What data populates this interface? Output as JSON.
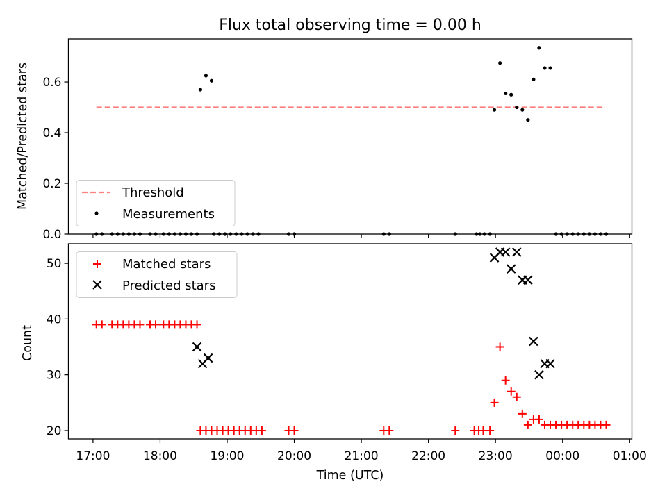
{
  "chart_data": [
    {
      "type": "scatter",
      "title": "Flux total observing time = 0.00 h",
      "xlabel": "",
      "ylabel": "Matched/Predicted stars",
      "xlim": [
        "16:38",
        "01:02"
      ],
      "ylim": [
        0,
        0.77
      ],
      "y_ticks": [
        "0.0",
        "0.2",
        "0.4",
        "0.6"
      ],
      "grid": false,
      "legend_position": "lower-left",
      "series": [
        {
          "name": "Threshold",
          "style": "dashed-line",
          "color": "#ff7f7f",
          "x": [
            "17:03",
            "00:38"
          ],
          "y": [
            0.5,
            0.5
          ]
        },
        {
          "name": "Measurements",
          "style": "dot",
          "color": "#000000",
          "points": [
            [
              "17:03",
              0
            ],
            [
              "17:08",
              0
            ],
            [
              "17:17",
              0
            ],
            [
              "17:22",
              0
            ],
            [
              "17:27",
              0
            ],
            [
              "17:32",
              0
            ],
            [
              "17:37",
              0
            ],
            [
              "17:42",
              0
            ],
            [
              "17:51",
              0
            ],
            [
              "17:56",
              0
            ],
            [
              "18:03",
              0
            ],
            [
              "18:08",
              0
            ],
            [
              "18:13",
              0
            ],
            [
              "18:18",
              0
            ],
            [
              "18:23",
              0
            ],
            [
              "18:28",
              0
            ],
            [
              "18:33",
              0
            ],
            [
              "18:36",
              0.57
            ],
            [
              "18:41",
              0.625
            ],
            [
              "18:46",
              0.605
            ],
            [
              "18:48",
              0
            ],
            [
              "18:53",
              0
            ],
            [
              "18:58",
              0
            ],
            [
              "19:03",
              0
            ],
            [
              "19:08",
              0
            ],
            [
              "19:13",
              0
            ],
            [
              "19:18",
              0
            ],
            [
              "19:23",
              0
            ],
            [
              "19:28",
              0
            ],
            [
              "19:55",
              0
            ],
            [
              "20:00",
              0
            ],
            [
              "21:20",
              0
            ],
            [
              "21:25",
              0
            ],
            [
              "22:24",
              0
            ],
            [
              "22:43",
              0
            ],
            [
              "22:46",
              0
            ],
            [
              "22:50",
              0
            ],
            [
              "22:55",
              0
            ],
            [
              "22:59",
              0.49
            ],
            [
              "23:04",
              0.675
            ],
            [
              "23:09",
              0.555
            ],
            [
              "23:14",
              0.55
            ],
            [
              "23:19",
              0.5
            ],
            [
              "23:24",
              0.49
            ],
            [
              "23:29",
              0.45
            ],
            [
              "23:34",
              0.61
            ],
            [
              "23:39",
              0.735
            ],
            [
              "23:44",
              0.655
            ],
            [
              "23:49",
              0.655
            ],
            [
              "23:54",
              0
            ],
            [
              "23:59",
              0
            ],
            [
              "00:04",
              0
            ],
            [
              "00:09",
              0
            ],
            [
              "00:14",
              0
            ],
            [
              "00:19",
              0
            ],
            [
              "00:24",
              0
            ],
            [
              "00:29",
              0
            ],
            [
              "00:34",
              0
            ],
            [
              "00:39",
              0
            ]
          ]
        }
      ]
    },
    {
      "type": "scatter",
      "title": "",
      "xlabel": "Time (UTC)",
      "ylabel": "Count",
      "xlim": [
        "16:38",
        "01:02"
      ],
      "ylim": [
        18.5,
        53.5
      ],
      "x_ticks": [
        "17:00",
        "18:00",
        "19:00",
        "20:00",
        "21:00",
        "22:00",
        "23:00",
        "00:00",
        "01:00"
      ],
      "y_ticks": [
        "20",
        "30",
        "40",
        "50"
      ],
      "grid": false,
      "legend_position": "upper-left",
      "series": [
        {
          "name": "Matched stars",
          "marker": "plus",
          "color": "#ff0000",
          "points": [
            [
              "17:03",
              39
            ],
            [
              "17:08",
              39
            ],
            [
              "17:17",
              39
            ],
            [
              "17:22",
              39
            ],
            [
              "17:27",
              39
            ],
            [
              "17:32",
              39
            ],
            [
              "17:37",
              39
            ],
            [
              "17:42",
              39
            ],
            [
              "17:51",
              39
            ],
            [
              "17:56",
              39
            ],
            [
              "18:03",
              39
            ],
            [
              "18:08",
              39
            ],
            [
              "18:13",
              39
            ],
            [
              "18:18",
              39
            ],
            [
              "18:23",
              39
            ],
            [
              "18:28",
              39
            ],
            [
              "18:33",
              39
            ],
            [
              "18:36",
              20
            ],
            [
              "18:41",
              20
            ],
            [
              "18:46",
              20
            ],
            [
              "18:51",
              20
            ],
            [
              "18:56",
              20
            ],
            [
              "19:01",
              20
            ],
            [
              "19:06",
              20
            ],
            [
              "19:11",
              20
            ],
            [
              "19:16",
              20
            ],
            [
              "19:21",
              20
            ],
            [
              "19:26",
              20
            ],
            [
              "19:31",
              20
            ],
            [
              "19:55",
              20
            ],
            [
              "20:00",
              20
            ],
            [
              "21:20",
              20
            ],
            [
              "21:25",
              20
            ],
            [
              "22:24",
              20
            ],
            [
              "22:41",
              20
            ],
            [
              "22:45",
              20
            ],
            [
              "22:49",
              20
            ],
            [
              "22:55",
              20
            ],
            [
              "22:59",
              25
            ],
            [
              "23:04",
              35
            ],
            [
              "23:09",
              29
            ],
            [
              "23:14",
              27
            ],
            [
              "23:19",
              26
            ],
            [
              "23:24",
              23
            ],
            [
              "23:29",
              21
            ],
            [
              "23:34",
              22
            ],
            [
              "23:39",
              22
            ],
            [
              "23:44",
              21
            ],
            [
              "23:49",
              21
            ],
            [
              "23:54",
              21
            ],
            [
              "23:59",
              21
            ],
            [
              "00:04",
              21
            ],
            [
              "00:09",
              21
            ],
            [
              "00:14",
              21
            ],
            [
              "00:19",
              21
            ],
            [
              "00:24",
              21
            ],
            [
              "00:29",
              21
            ],
            [
              "00:34",
              21
            ],
            [
              "00:39",
              21
            ]
          ]
        },
        {
          "name": "Predicted stars",
          "marker": "x",
          "color": "#000000",
          "points": [
            [
              "18:33",
              35
            ],
            [
              "18:38",
              32
            ],
            [
              "18:43",
              33
            ],
            [
              "22:59",
              51
            ],
            [
              "23:04",
              52
            ],
            [
              "23:09",
              52
            ],
            [
              "23:14",
              49
            ],
            [
              "23:19",
              52
            ],
            [
              "23:24",
              47
            ],
            [
              "23:29",
              47
            ],
            [
              "23:34",
              36
            ],
            [
              "23:39",
              30
            ],
            [
              "23:44",
              32
            ],
            [
              "23:49",
              32
            ]
          ]
        }
      ]
    }
  ]
}
